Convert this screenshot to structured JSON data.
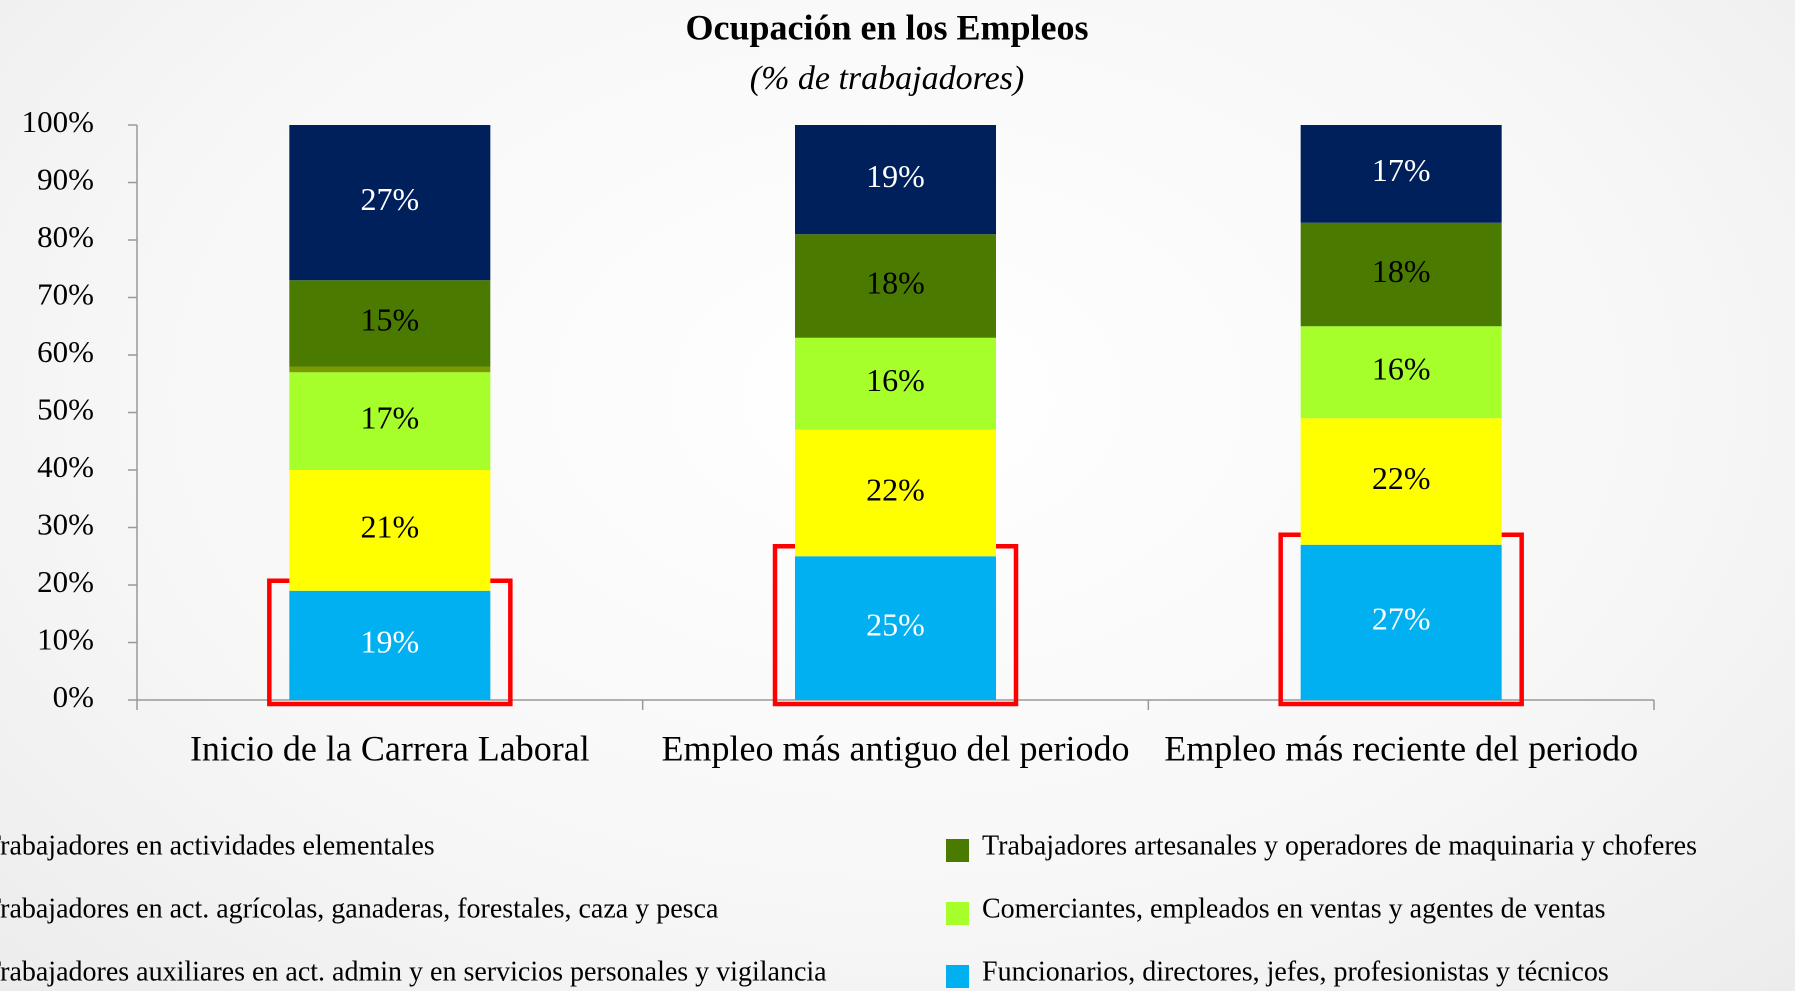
{
  "chart_data": {
    "type": "stacked_bar",
    "title": "Ocupación en los Empleos",
    "subtitle": "(% de trabajadores)",
    "categories": [
      "Inicio de la Carrera Laboral",
      "Empleo más antiguo del periodo",
      "Empleo más reciente del periodo"
    ],
    "series": [
      {
        "name": "Funcionarios, directores, jefes, profesionistas y técnicos",
        "color": "#00b0f0",
        "label_color": "#ffffff",
        "values": [
          19,
          25,
          27
        ],
        "value_labels": [
          "19%",
          "25%",
          "27%"
        ]
      },
      {
        "name": "Trabajadores auxiliares en act. admin y en servicios personales y vigilancia",
        "color": "#ffff00",
        "label_color": "#000000",
        "values": [
          21,
          22,
          22
        ],
        "value_labels": [
          "21%",
          "22%",
          "22%"
        ]
      },
      {
        "name": "Comerciantes, empleados en ventas y agentes de ventas",
        "color": "#a6ff2a",
        "label_color": "#000000",
        "values": [
          17,
          16,
          16
        ],
        "value_labels": [
          "17%",
          "16%",
          "16%"
        ]
      },
      {
        "name": "Trabajadores en act. agrícolas, ganaderas, forestales, caza y pesca",
        "color": "#7a9a01",
        "label_color": "#000000",
        "values": [
          1,
          0,
          0
        ],
        "value_labels": [
          null,
          null,
          null
        ]
      },
      {
        "name": "Trabajadores artesanales y operadores de maquinaria y choferes",
        "color": "#4a7a00",
        "label_color": "#000000",
        "values": [
          15,
          18,
          18
        ],
        "value_labels": [
          "15%",
          "18%",
          "18%"
        ]
      },
      {
        "name": "Trabajadores en actividades elementales",
        "color": "#00205c",
        "label_color": "#ffffff",
        "values": [
          27,
          19,
          17
        ],
        "value_labels": [
          "27%",
          "19%",
          "17%"
        ]
      }
    ],
    "ylim": [
      0,
      100
    ],
    "yticks": [
      {
        "value": 0,
        "label": "0%"
      },
      {
        "value": 10,
        "label": "10%"
      },
      {
        "value": 20,
        "label": "20%"
      },
      {
        "value": 30,
        "label": "30%"
      },
      {
        "value": 40,
        "label": "40%"
      },
      {
        "value": 50,
        "label": "50%"
      },
      {
        "value": 60,
        "label": "60%"
      },
      {
        "value": 70,
        "label": "70%"
      },
      {
        "value": 80,
        "label": "80%"
      },
      {
        "value": 90,
        "label": "90%"
      },
      {
        "value": 100,
        "label": "100%"
      }
    ],
    "highlight_color": "#ff0000"
  }
}
